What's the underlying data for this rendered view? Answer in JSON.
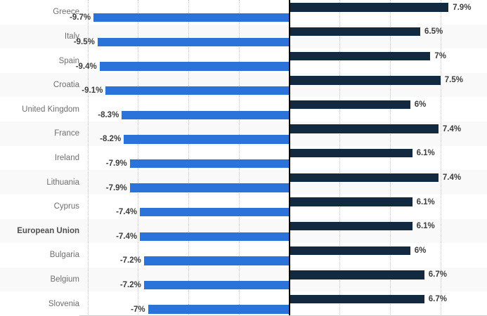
{
  "chart_data": {
    "type": "bar",
    "orientation": "diverging-horizontal",
    "title": "",
    "unit": "%",
    "categories": [
      "Greece",
      "Italy",
      "Spain",
      "Croatia",
      "United Kingdom",
      "France",
      "Ireland",
      "Lithuania",
      "Cyprus",
      "European Union",
      "Bulgaria",
      "Belgium",
      "Slovenia"
    ],
    "emphasized_category": "European Union",
    "series": [
      {
        "name": "negative-series",
        "color": "#2b73d8",
        "values": [
          -9.7,
          -9.5,
          -9.4,
          -9.1,
          -8.3,
          -8.2,
          -7.9,
          -7.9,
          -7.4,
          -7.4,
          -7.2,
          -7.2,
          -7.0
        ],
        "labels": [
          "-9.7%",
          "-9.5%",
          "-9.4%",
          "-9.1%",
          "-8.3%",
          "-8.2%",
          "-7.9%",
          "-7.9%",
          "-7.4%",
          "-7.4%",
          "-7.2%",
          "-7.2%",
          "-7%"
        ]
      },
      {
        "name": "positive-series",
        "color": "#122940",
        "values": [
          7.9,
          6.5,
          7.0,
          7.5,
          6.0,
          7.4,
          6.1,
          7.4,
          6.1,
          6.1,
          6.0,
          6.7,
          6.7
        ],
        "labels": [
          "7.9%",
          "6.5%",
          "7%",
          "7.5%",
          "6%",
          "7.4%",
          "6.1%",
          "7.4%",
          "6.1%",
          "6.1%",
          "6%",
          "6.7%",
          "6.7%"
        ]
      }
    ],
    "axis": {
      "gridlines": [
        -10,
        -7.5,
        -5,
        -2.5,
        2.5,
        5,
        7.5
      ],
      "gridline_step": 2.5,
      "xlim": [
        -10.5,
        9.8
      ],
      "grid": "dotted-vertical",
      "zero_axis_color": "#0a0a0a"
    },
    "legend_position": "none",
    "style": {
      "zebra_band_color": "#f9f9f9",
      "background_color": "#ffffff",
      "gridline_color": "#c9c9c9",
      "country_label_color": "#6f6f6f",
      "value_label_color": "#3d3d3d",
      "baseline_color": "#cccccc"
    }
  }
}
